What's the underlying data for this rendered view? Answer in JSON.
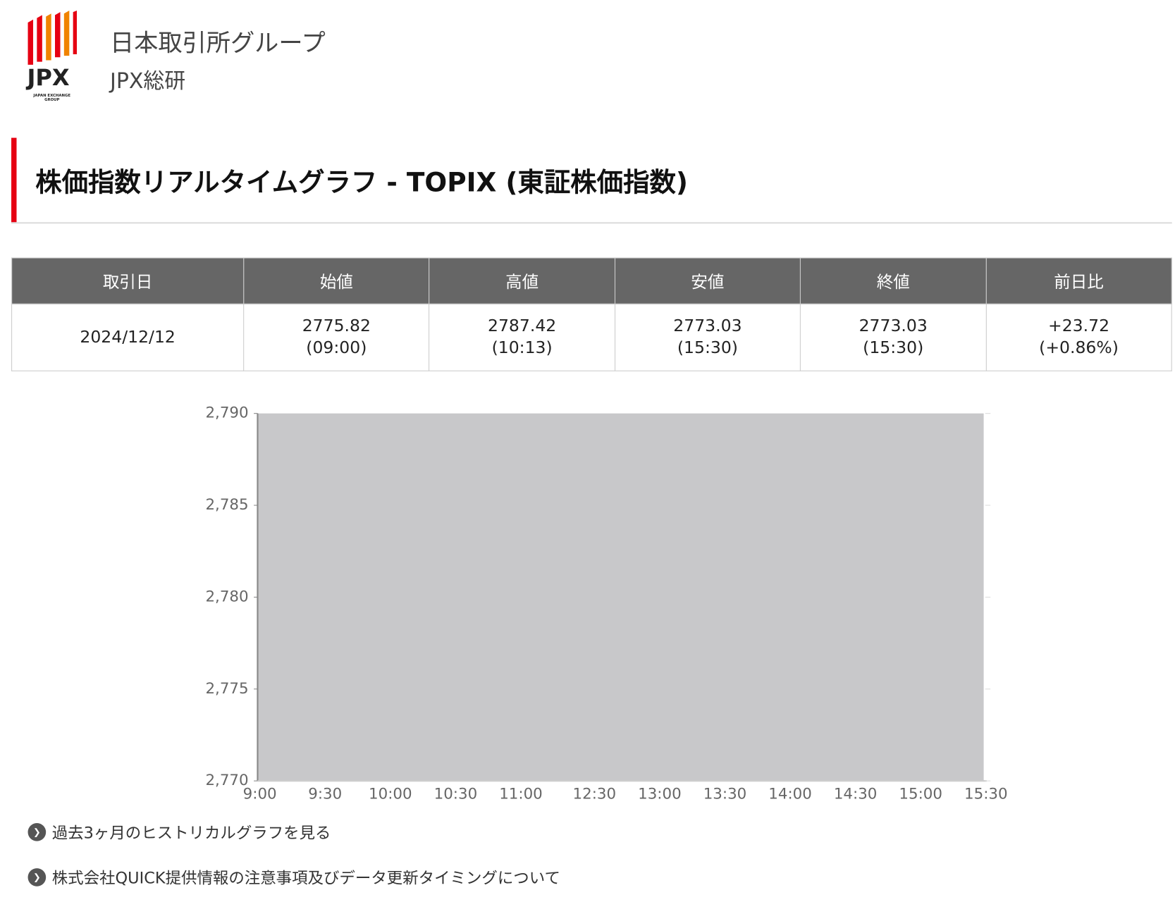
{
  "header": {
    "logo_text": "JPX",
    "logo_subtext": "JAPAN EXCHANGE GROUP",
    "company": "日本取引所グループ",
    "division": "JPX総研"
  },
  "page_title": "株価指数リアルタイムグラフ - TOPIX (東証株価指数)",
  "table": {
    "headers": [
      "取引日",
      "始値",
      "高値",
      "安値",
      "終値",
      "前日比"
    ],
    "rows": [
      [
        [
          "2024/12/12"
        ],
        [
          "2775.82",
          "(09:00)"
        ],
        [
          "2787.42",
          "(10:13)"
        ],
        [
          "2773.03",
          "(15:30)"
        ],
        [
          "2773.03",
          "(15:30)"
        ],
        [
          "+23.72",
          "(+0.86%)"
        ]
      ]
    ]
  },
  "chart_data": {
    "type": "area",
    "color": "#c8c8ca",
    "ylim": [
      2770,
      2790
    ],
    "yticks": [
      {
        "value": 2770,
        "label": "2,770"
      },
      {
        "value": 2775,
        "label": "2,775"
      },
      {
        "value": 2780,
        "label": "2,780"
      },
      {
        "value": 2785,
        "label": "2,785"
      },
      {
        "value": 2790,
        "label": "2,790"
      }
    ],
    "xticks": [
      "9:00",
      "9:30",
      "10:00",
      "10:30",
      "11:00",
      "12:30",
      "13:00",
      "13:30",
      "14:00",
      "14:30",
      "15:00",
      "15:30"
    ]
  },
  "links": [
    "過去3ヶ月のヒストリカルグラフを見る",
    "株式会社QUICK提供情報の注意事項及びデータ更新タイミングについて"
  ]
}
